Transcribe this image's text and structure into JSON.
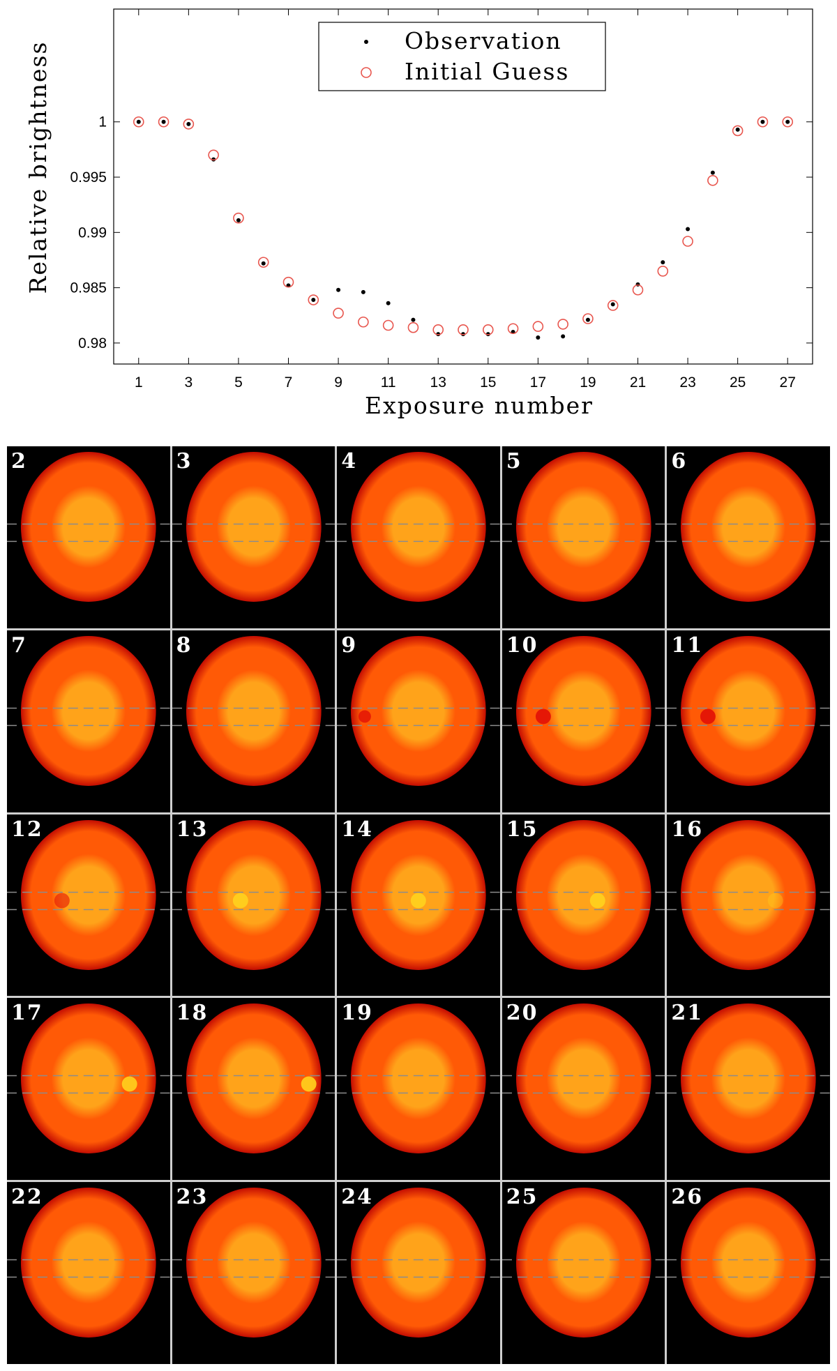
{
  "chart_data": {
    "type": "scatter",
    "title": "",
    "xlabel": "Exposure number",
    "ylabel": "Relative brightness",
    "xlim": [
      0,
      28
    ],
    "ylim": [
      0.9781,
      1.0102
    ],
    "xticks": [
      1,
      3,
      5,
      7,
      9,
      11,
      13,
      15,
      17,
      19,
      21,
      23,
      25,
      27
    ],
    "xtick_labels": [
      "1",
      "3",
      "5",
      "7",
      "9",
      "11",
      "13",
      "15",
      "17",
      "19",
      "21",
      "23",
      "25",
      "27"
    ],
    "yticks": [
      0.98,
      0.985,
      0.99,
      0.995,
      1
    ],
    "ytick_labels": [
      "0.98",
      "0.985",
      "0.99",
      "0.995",
      "1"
    ],
    "grid": false,
    "legend_position": "top-center",
    "series": [
      {
        "name": "Observation",
        "marker": "dot",
        "color": "#000000",
        "x": [
          1,
          2,
          3,
          4,
          5,
          6,
          7,
          8,
          9,
          10,
          11,
          12,
          13,
          14,
          15,
          16,
          17,
          18,
          19,
          20,
          21,
          22,
          23,
          24,
          25,
          26,
          27
        ],
        "y": [
          1.0,
          1.0,
          0.9998,
          0.9966,
          0.9911,
          0.9872,
          0.9852,
          0.9839,
          0.9848,
          0.9846,
          0.9836,
          0.9821,
          0.9808,
          0.9808,
          0.9808,
          0.981,
          0.9805,
          0.9806,
          0.9821,
          0.9835,
          0.9853,
          0.9873,
          0.9903,
          0.9954,
          0.9993,
          1.0,
          1.0
        ]
      },
      {
        "name": "Initial Guess",
        "marker": "open-circle",
        "color": "#e8564e",
        "x": [
          1,
          2,
          3,
          4,
          5,
          6,
          7,
          8,
          9,
          10,
          11,
          12,
          13,
          14,
          15,
          16,
          17,
          18,
          19,
          20,
          21,
          22,
          23,
          24,
          25,
          26,
          27
        ],
        "y": [
          1.0,
          1.0,
          0.9998,
          0.997,
          0.9913,
          0.9873,
          0.9855,
          0.9839,
          0.9827,
          0.9819,
          0.9816,
          0.9814,
          0.9812,
          0.9812,
          0.9812,
          0.9813,
          0.9815,
          0.9817,
          0.9822,
          0.9834,
          0.9848,
          0.9865,
          0.9892,
          0.9947,
          0.9992,
          1.0,
          1.0
        ]
      }
    ]
  },
  "panels": {
    "labels": [
      "2",
      "3",
      "4",
      "5",
      "6",
      "7",
      "8",
      "9",
      "10",
      "11",
      "12",
      "13",
      "14",
      "15",
      "16",
      "17",
      "18",
      "19",
      "20",
      "21",
      "22",
      "23",
      "24",
      "25",
      "26"
    ],
    "spot_types": [
      "none",
      "none",
      "none",
      "none",
      "none",
      "none",
      "none",
      "dark-edge",
      "dark",
      "dark",
      "faint-dark",
      "bright",
      "bright",
      "bright",
      "faint-bright",
      "bright",
      "bright",
      "none",
      "none",
      "none",
      "none",
      "none",
      "none",
      "none",
      "none"
    ],
    "colors": {
      "background": "#000000",
      "disk_center": "#ffa31a",
      "disk_mid": "#ff5a06",
      "disk_edge": "#c40d02",
      "dark_spot": "#e41406",
      "bright_spot": "#ffd21e",
      "guide_line": "#8c8c8c"
    }
  }
}
